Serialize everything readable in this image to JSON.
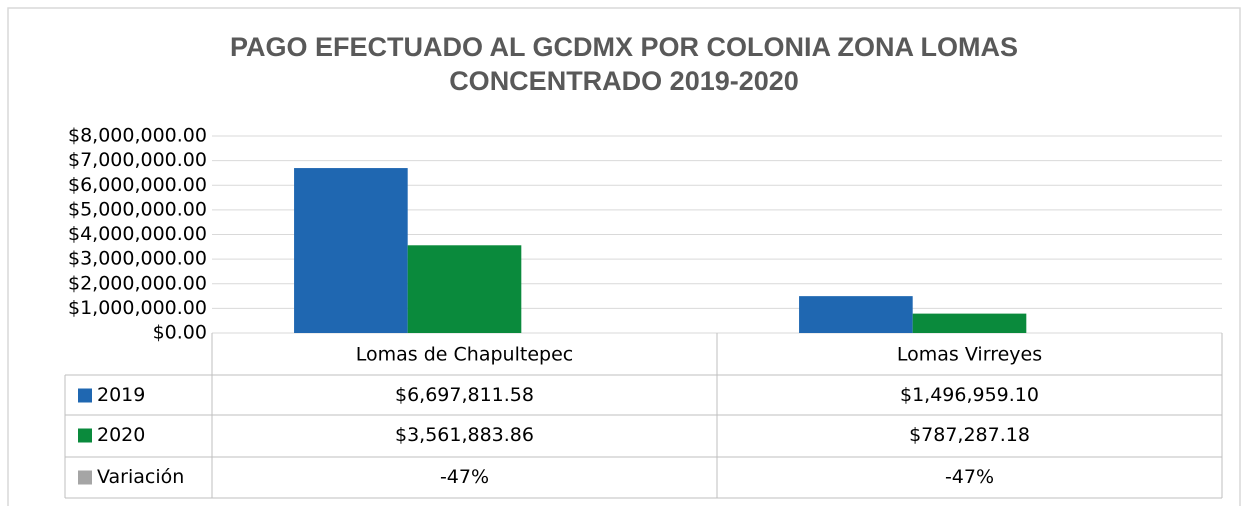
{
  "chart_data": {
    "type": "bar",
    "title": "PAGO EFECTUADO AL GCDMX POR COLONIA ZONA LOMAS CONCENTRADO 2019-2020",
    "categories": [
      "Lomas de Chapultepec",
      "Lomas Virreyes"
    ],
    "series": [
      {
        "name": "2019",
        "color": "#1f67b1",
        "values": [
          6697811.58,
          1496959.1
        ],
        "value_labels": [
          "$6,697,811.58",
          "$1,496,959.10"
        ]
      },
      {
        "name": "2020",
        "color": "#0a8a3c",
        "values": [
          3561883.86,
          787287.18
        ],
        "value_labels": [
          "$3,561,883.86",
          "$787,287.18"
        ]
      },
      {
        "name": "Variación",
        "color": "#a5a5a5",
        "values": [
          -47,
          -47
        ],
        "value_labels": [
          "-47%",
          "-47%"
        ]
      }
    ],
    "ylim": [
      0,
      8000000
    ],
    "yticks": [
      {
        "value": 0,
        "label": "$0.00"
      },
      {
        "value": 1000000,
        "label": "$1,000,000.00"
      },
      {
        "value": 2000000,
        "label": "$2,000,000.00"
      },
      {
        "value": 3000000,
        "label": "$3,000,000.00"
      },
      {
        "value": 4000000,
        "label": "$4,000,000.00"
      },
      {
        "value": 5000000,
        "label": "$5,000,000.00"
      },
      {
        "value": 6000000,
        "label": "$6,000,000.00"
      },
      {
        "value": 7000000,
        "label": "$7,000,000.00"
      },
      {
        "value": 8000000,
        "label": "$8,000,000.00"
      }
    ],
    "grid": true
  }
}
